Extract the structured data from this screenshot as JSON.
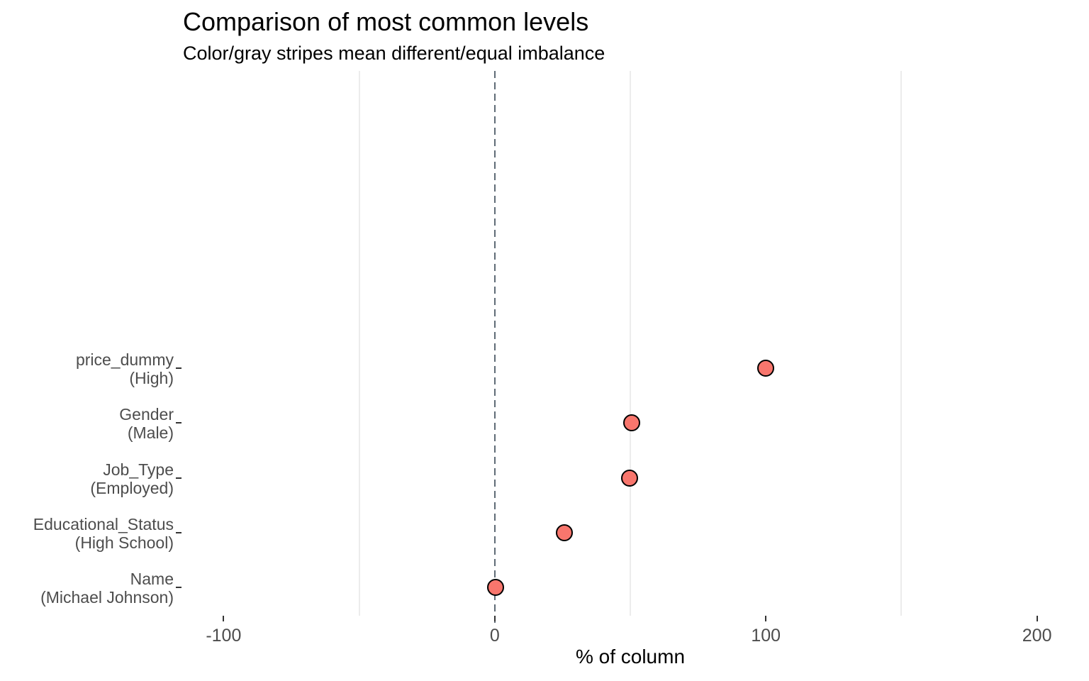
{
  "chart_data": {
    "type": "scatter",
    "title": "Comparison of most common levels",
    "subtitle": "Color/gray stripes mean different/equal imbalance",
    "xlabel": "% of column",
    "xlim": [
      -115,
      215
    ],
    "x_ticks": [
      -100,
      0,
      100,
      200
    ],
    "x_minor_gridlines": [
      -50,
      50,
      150
    ],
    "reference_line_x": 0,
    "grid": "minor-vertical-only",
    "legend": "none",
    "rows": [
      {
        "variable": "price_dummy",
        "level_label": "(High)",
        "value": 100
      },
      {
        "variable": "Gender",
        "level_label": "(Male)",
        "value": 50.4
      },
      {
        "variable": "Job_Type",
        "level_label": "(Employed)",
        "value": 49.8
      },
      {
        "variable": "Educational_Status",
        "level_label": "(High School)",
        "value": 25.6
      },
      {
        "variable": "Name",
        "level_label": "(Michael Johnson)",
        "value": 0.2
      }
    ],
    "style": {
      "point_fill": "#F8766D",
      "point_stroke": "#000000",
      "reference_line_color": "#5f6b76",
      "minor_grid_color": "#ececec",
      "axis_text_color": "#4d4d4d",
      "tick_mark_color": "#333333",
      "title_color": "#000000"
    }
  }
}
